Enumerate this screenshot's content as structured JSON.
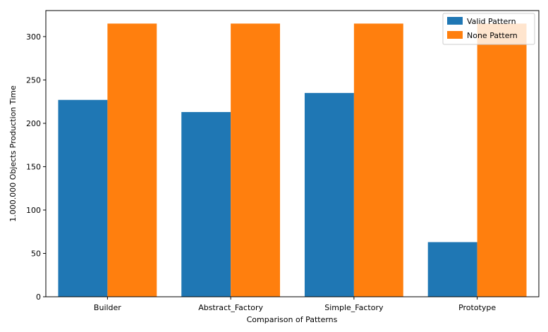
{
  "chart_data": {
    "type": "bar",
    "categories": [
      "Builder",
      "Abstract_Factory",
      "Simple_Factory",
      "Prototype"
    ],
    "series": [
      {
        "name": "Valid Pattern",
        "values": [
          227,
          213,
          235,
          63
        ],
        "color": "#1f77b4"
      },
      {
        "name": "None Pattern",
        "values": [
          315,
          315,
          315,
          315
        ],
        "color": "#ff7f0e"
      }
    ],
    "xlabel": "Comparison of Patterns",
    "ylabel": "1.000.000 Objects Production Time",
    "ylim": [
      0,
      330
    ],
    "yticks": [
      0,
      50,
      100,
      150,
      200,
      250,
      300
    ],
    "grid": false,
    "legend_position": "top-right"
  }
}
